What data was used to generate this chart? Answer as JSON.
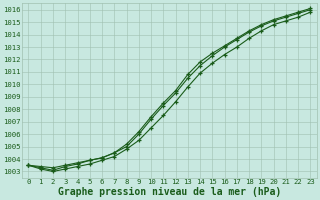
{
  "title": "Graphe pression niveau de la mer (hPa)",
  "x": [
    0,
    1,
    2,
    3,
    4,
    5,
    6,
    7,
    8,
    9,
    10,
    11,
    12,
    13,
    14,
    15,
    16,
    17,
    18,
    19,
    20,
    21,
    22,
    23
  ],
  "line1": [
    1003.5,
    1003.4,
    1003.3,
    1003.5,
    1003.7,
    1003.9,
    1004.1,
    1004.5,
    1005.0,
    1006.0,
    1007.2,
    1008.3,
    1009.3,
    1010.5,
    1011.5,
    1012.3,
    1013.0,
    1013.6,
    1014.2,
    1014.7,
    1015.1,
    1015.4,
    1015.7,
    1016.0
  ],
  "line2": [
    1003.5,
    1003.3,
    1003.1,
    1003.4,
    1003.6,
    1003.9,
    1004.1,
    1004.5,
    1005.2,
    1006.2,
    1007.4,
    1008.5,
    1009.5,
    1010.8,
    1011.8,
    1012.5,
    1013.1,
    1013.7,
    1014.3,
    1014.8,
    1015.2,
    1015.5,
    1015.8,
    1016.1
  ],
  "line3": [
    1003.5,
    1003.2,
    1003.0,
    1003.2,
    1003.4,
    1003.6,
    1003.9,
    1004.2,
    1004.8,
    1005.5,
    1006.5,
    1007.5,
    1008.6,
    1009.8,
    1010.9,
    1011.7,
    1012.4,
    1013.0,
    1013.7,
    1014.3,
    1014.8,
    1015.1,
    1015.4,
    1015.8
  ],
  "ylim": [
    1002.5,
    1016.5
  ],
  "xlim": [
    -0.5,
    23.5
  ],
  "yticks": [
    1003,
    1004,
    1005,
    1006,
    1007,
    1008,
    1009,
    1010,
    1011,
    1012,
    1013,
    1014,
    1015,
    1016
  ],
  "xticks": [
    0,
    1,
    2,
    3,
    4,
    5,
    6,
    7,
    8,
    9,
    10,
    11,
    12,
    13,
    14,
    15,
    16,
    17,
    18,
    19,
    20,
    21,
    22,
    23
  ],
  "line_color": "#1a5c1a",
  "marker": "+",
  "bg_color": "#c8e8e0",
  "grid_color": "#a0c0b0",
  "title_color": "#1a5c1a",
  "tick_color": "#1a5c1a",
  "title_fontsize": 7.0,
  "tick_fontsize": 5.2,
  "linewidth": 0.8,
  "markersize": 3.5,
  "markeredgewidth": 0.9
}
